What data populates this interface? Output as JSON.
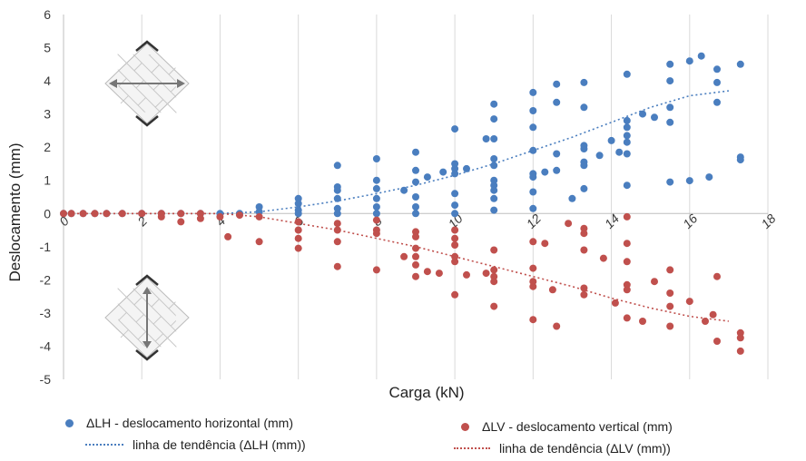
{
  "chart_data": {
    "type": "scatter",
    "xlabel": "Carga (kN)",
    "ylabel": "Deslocamento (mm)",
    "xlim": [
      0,
      18
    ],
    "ylim": [
      -5,
      6
    ],
    "x_ticks": [
      0,
      2,
      4,
      6,
      8,
      10,
      12,
      14,
      16,
      18
    ],
    "y_ticks": [
      -5,
      -4,
      -3,
      -2,
      -1,
      0,
      1,
      2,
      3,
      4,
      5,
      6
    ],
    "grid": "vertical",
    "legend_position": "bottom",
    "series": [
      {
        "name": "ΔLH - deslocamento horizontal (mm)",
        "kind": "points",
        "color": "#4a7ebf",
        "points": [
          [
            0,
            0
          ],
          [
            0.2,
            0
          ],
          [
            0.5,
            0
          ],
          [
            0.8,
            0
          ],
          [
            1.1,
            0
          ],
          [
            1.5,
            0
          ],
          [
            2,
            0
          ],
          [
            2.5,
            0
          ],
          [
            3,
            0
          ],
          [
            3.5,
            0
          ],
          [
            4,
            0
          ],
          [
            4.5,
            0
          ],
          [
            5,
            0.2
          ],
          [
            5,
            0.05
          ],
          [
            6,
            0.45
          ],
          [
            6,
            0.3
          ],
          [
            6,
            0.1
          ],
          [
            6,
            0
          ],
          [
            7,
            1.45
          ],
          [
            7,
            0.8
          ],
          [
            7,
            0.7
          ],
          [
            7,
            0.45
          ],
          [
            7,
            0.15
          ],
          [
            7,
            0
          ],
          [
            8,
            1.65
          ],
          [
            8,
            1
          ],
          [
            8,
            0.75
          ],
          [
            8,
            0.45
          ],
          [
            8,
            0.2
          ],
          [
            8,
            0
          ],
          [
            8.7,
            0.7
          ],
          [
            9,
            1.85
          ],
          [
            9,
            1.3
          ],
          [
            9,
            0.95
          ],
          [
            9,
            0.5
          ],
          [
            9,
            0.2
          ],
          [
            9,
            0
          ],
          [
            9.3,
            1.1
          ],
          [
            9.7,
            1.25
          ],
          [
            10,
            2.55
          ],
          [
            10,
            1.5
          ],
          [
            10,
            1.35
          ],
          [
            10,
            1.2
          ],
          [
            10,
            0.6
          ],
          [
            10,
            0.25
          ],
          [
            10,
            0
          ],
          [
            10.3,
            1.35
          ],
          [
            10.8,
            2.25
          ],
          [
            11,
            3.3
          ],
          [
            11,
            2.85
          ],
          [
            11,
            2.25
          ],
          [
            11,
            1.65
          ],
          [
            11,
            1.45
          ],
          [
            11,
            1
          ],
          [
            11,
            0.85
          ],
          [
            11,
            0.7
          ],
          [
            11,
            0.45
          ],
          [
            11,
            0.1
          ],
          [
            12,
            3.65
          ],
          [
            12,
            3.1
          ],
          [
            12,
            2.6
          ],
          [
            12,
            1.9
          ],
          [
            12,
            1.2
          ],
          [
            12,
            1.1
          ],
          [
            12,
            0.65
          ],
          [
            12,
            0.15
          ],
          [
            12.3,
            1.25
          ],
          [
            12.6,
            3.9
          ],
          [
            12.6,
            3.35
          ],
          [
            12.6,
            1.8
          ],
          [
            12.6,
            1.3
          ],
          [
            13,
            0.45
          ],
          [
            13.3,
            3.95
          ],
          [
            13.3,
            3.2
          ],
          [
            13.3,
            2.05
          ],
          [
            13.3,
            1.95
          ],
          [
            13.3,
            1.55
          ],
          [
            13.3,
            1.45
          ],
          [
            13.3,
            0.75
          ],
          [
            13.7,
            1.75
          ],
          [
            14,
            2.2
          ],
          [
            14.2,
            1.85
          ],
          [
            14.4,
            4.2
          ],
          [
            14.4,
            2.8
          ],
          [
            14.4,
            2.6
          ],
          [
            14.4,
            2.35
          ],
          [
            14.4,
            2.15
          ],
          [
            14.4,
            1.8
          ],
          [
            14.4,
            0.85
          ],
          [
            14.8,
            3
          ],
          [
            15.1,
            2.9
          ],
          [
            15.5,
            4.5
          ],
          [
            15.5,
            4
          ],
          [
            15.5,
            3.2
          ],
          [
            15.5,
            2.75
          ],
          [
            15.5,
            0.95
          ],
          [
            16,
            4.6
          ],
          [
            16,
            0.99
          ],
          [
            16.3,
            4.75
          ],
          [
            16.5,
            1.1
          ],
          [
            16.7,
            4.35
          ],
          [
            16.7,
            3.95
          ],
          [
            16.7,
            3.35
          ],
          [
            17.3,
            4.5
          ],
          [
            17.3,
            1.7
          ],
          [
            17.3,
            1.62
          ]
        ]
      },
      {
        "name": "ΔLV  - deslocamento vertical (mm)",
        "kind": "points",
        "color": "#c0504d",
        "points": [
          [
            0,
            0
          ],
          [
            0.2,
            0
          ],
          [
            0.5,
            0
          ],
          [
            0.8,
            0
          ],
          [
            1.1,
            0
          ],
          [
            1.5,
            0
          ],
          [
            2,
            0
          ],
          [
            2.5,
            0
          ],
          [
            3,
            0
          ],
          [
            3.5,
            0
          ],
          [
            2.5,
            -0.1
          ],
          [
            3,
            -0.25
          ],
          [
            3.5,
            -0.15
          ],
          [
            4,
            -0.1
          ],
          [
            4.5,
            -0.05
          ],
          [
            4.2,
            -0.7
          ],
          [
            5,
            -0.1
          ],
          [
            5,
            -0.85
          ],
          [
            6,
            -0.25
          ],
          [
            6,
            -0.5
          ],
          [
            6,
            -0.75
          ],
          [
            6,
            -1.05
          ],
          [
            7,
            -0.3
          ],
          [
            7,
            -0.5
          ],
          [
            7,
            -0.85
          ],
          [
            7,
            -1.6
          ],
          [
            8,
            -0.2
          ],
          [
            8,
            -0.5
          ],
          [
            8,
            -0.6
          ],
          [
            8,
            -1.7
          ],
          [
            8.7,
            -1.3
          ],
          [
            9,
            -0.55
          ],
          [
            9,
            -0.7
          ],
          [
            9,
            -1.05
          ],
          [
            9,
            -1.3
          ],
          [
            9,
            -1.55
          ],
          [
            9,
            -1.9
          ],
          [
            9.3,
            -1.75
          ],
          [
            9.6,
            -1.8
          ],
          [
            10,
            -0.5
          ],
          [
            10,
            -0.75
          ],
          [
            10,
            -0.95
          ],
          [
            10,
            -1.3
          ],
          [
            10,
            -1.45
          ],
          [
            10,
            -2.45
          ],
          [
            10.3,
            -1.85
          ],
          [
            10.8,
            -1.8
          ],
          [
            11,
            -1.1
          ],
          [
            11,
            -1.7
          ],
          [
            11,
            -1.9
          ],
          [
            11,
            -2.05
          ],
          [
            11,
            -2.8
          ],
          [
            12,
            -0.85
          ],
          [
            12,
            -1.65
          ],
          [
            12,
            -2.05
          ],
          [
            12,
            -2.2
          ],
          [
            12,
            -3.2
          ],
          [
            12.3,
            -0.9
          ],
          [
            12.5,
            -2.3
          ],
          [
            12.6,
            -3.4
          ],
          [
            12.9,
            -0.3
          ],
          [
            13.3,
            -0.45
          ],
          [
            13.3,
            -0.6
          ],
          [
            13.3,
            -1.1
          ],
          [
            13.3,
            -2.25
          ],
          [
            13.3,
            -2.45
          ],
          [
            13.8,
            -1.35
          ],
          [
            14.1,
            -2.7
          ],
          [
            14.4,
            -0.1
          ],
          [
            14.4,
            -0.9
          ],
          [
            14.4,
            -1.45
          ],
          [
            14.4,
            -2.15
          ],
          [
            14.4,
            -2.3
          ],
          [
            14.4,
            -3.15
          ],
          [
            14.8,
            -3.25
          ],
          [
            15.1,
            -2.05
          ],
          [
            15.5,
            -1.7
          ],
          [
            15.5,
            -2.4
          ],
          [
            15.5,
            -2.8
          ],
          [
            15.5,
            -3.4
          ],
          [
            16,
            -2.65
          ],
          [
            16.4,
            -3.25
          ],
          [
            16.6,
            -3.05
          ],
          [
            16.7,
            -1.9
          ],
          [
            16.7,
            -3.85
          ],
          [
            17.3,
            -3.6
          ],
          [
            17.3,
            -3.75
          ],
          [
            17.3,
            -4.15
          ]
        ]
      },
      {
        "name": "linha de tendência  (ΔLH (mm))",
        "kind": "trendline",
        "color": "#4a7ebf",
        "points": [
          [
            0,
            0
          ],
          [
            2,
            0
          ],
          [
            4,
            0
          ],
          [
            5,
            0.05
          ],
          [
            6,
            0.2
          ],
          [
            7,
            0.38
          ],
          [
            8,
            0.6
          ],
          [
            9,
            0.85
          ],
          [
            10,
            1.15
          ],
          [
            11,
            1.5
          ],
          [
            12,
            1.9
          ],
          [
            13,
            2.3
          ],
          [
            14,
            2.75
          ],
          [
            15,
            3.2
          ],
          [
            16,
            3.55
          ],
          [
            17,
            3.7
          ]
        ]
      },
      {
        "name": "linha de tendência (ΔLV (mm))",
        "kind": "trendline",
        "color": "#c0504d",
        "points": [
          [
            0,
            0
          ],
          [
            2,
            0
          ],
          [
            4,
            0
          ],
          [
            5,
            -0.1
          ],
          [
            6,
            -0.3
          ],
          [
            7,
            -0.5
          ],
          [
            8,
            -0.75
          ],
          [
            9,
            -1.0
          ],
          [
            10,
            -1.3
          ],
          [
            11,
            -1.6
          ],
          [
            12,
            -1.9
          ],
          [
            13,
            -2.2
          ],
          [
            14,
            -2.55
          ],
          [
            15,
            -2.85
          ],
          [
            16,
            -3.1
          ],
          [
            17,
            -3.25
          ]
        ]
      }
    ]
  },
  "legend": {
    "lh_points": "ΔLH - deslocamento horizontal (mm)",
    "lv_points": "ΔLV  - deslocamento vertical (mm)",
    "lh_trend": "linha de tendência  (ΔLH (mm))",
    "lv_trend": "linha de tendência (ΔLV (mm))"
  },
  "icons": {
    "top": "masonry-panel-horizontal-arrow-icon",
    "bottom": "masonry-panel-vertical-arrow-icon"
  }
}
